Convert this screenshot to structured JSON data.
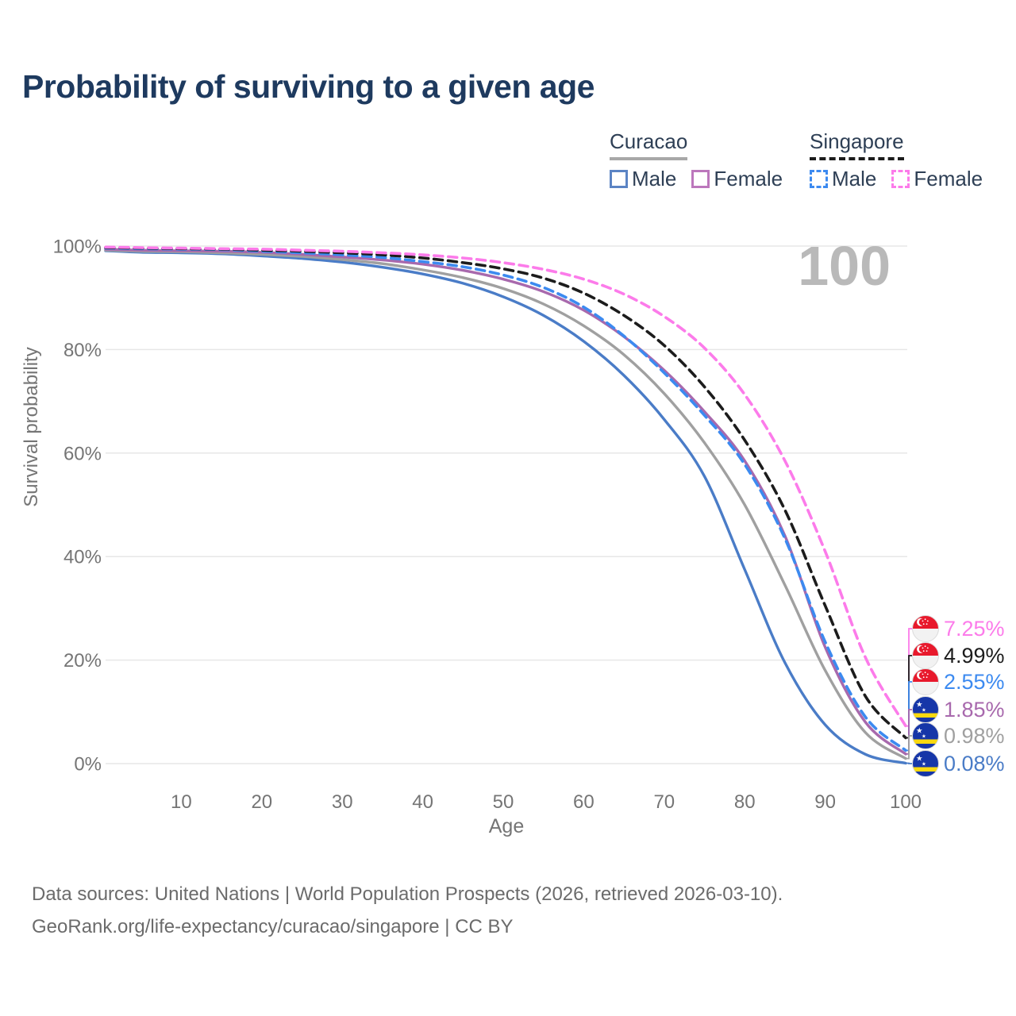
{
  "title": "Probability of surviving to a given age",
  "watermark": "100",
  "legend": {
    "curacao": {
      "label": "Curacao",
      "male": "Male",
      "female": "Female"
    },
    "singapore": {
      "label": "Singapore",
      "male": "Male",
      "female": "Female"
    }
  },
  "chart_data": {
    "type": "line",
    "title": "Probability of surviving to a given age",
    "xlabel": "Age",
    "ylabel": "Survival probability",
    "xlim": [
      0,
      100
    ],
    "ylim": [
      0,
      100
    ],
    "grid": "horizontal-only",
    "legend_position": "top-right",
    "x_ticks": [
      10,
      20,
      30,
      40,
      50,
      60,
      70,
      80,
      90,
      100
    ],
    "y_tick_labels": [
      "100%",
      "80%",
      "60%",
      "40%",
      "20%",
      "0%"
    ],
    "ages": [
      0,
      5,
      10,
      15,
      20,
      25,
      30,
      35,
      40,
      45,
      50,
      55,
      60,
      65,
      70,
      75,
      80,
      85,
      90,
      95,
      100
    ],
    "series": [
      {
        "name": "Singapore Female",
        "country": "Singapore",
        "sex": "Female",
        "line_style": "dashed",
        "color": "#fc7bea",
        "flag": "singapore",
        "end_label": "7.25%",
        "values": [
          99.8,
          99.7,
          99.6,
          99.5,
          99.4,
          99.2,
          99.0,
          98.7,
          98.3,
          97.7,
          96.8,
          95.5,
          93.6,
          90.7,
          86.4,
          80.3,
          71.3,
          58.5,
          41.0,
          20.5,
          7.25
        ]
      },
      {
        "name": "Singapore (both sexes)",
        "country": "Singapore",
        "sex": "Both",
        "line_style": "dashed",
        "color": "#1c1c1c",
        "flag": "singapore",
        "end_label": "4.99%",
        "values": [
          99.7,
          99.6,
          99.5,
          99.4,
          99.2,
          99.0,
          98.7,
          98.3,
          97.7,
          96.8,
          95.6,
          93.8,
          90.9,
          86.6,
          80.8,
          72.8,
          62.5,
          49.0,
          30.5,
          13.0,
          4.99
        ]
      },
      {
        "name": "Singapore Male",
        "country": "Singapore",
        "sex": "Male",
        "line_style": "dashed",
        "color": "#3c8af0",
        "flag": "singapore",
        "end_label": "2.55%",
        "values": [
          99.6,
          99.5,
          99.4,
          99.3,
          99.0,
          98.7,
          98.3,
          97.8,
          97.0,
          96.0,
          94.4,
          92.0,
          88.2,
          82.6,
          75.5,
          67.3,
          57.8,
          43.5,
          23.5,
          9.0,
          2.55
        ]
      },
      {
        "name": "Curacao Female",
        "country": "Curacao",
        "sex": "Female",
        "line_style": "solid",
        "color": "#a869ad",
        "flag": "curacao",
        "end_label": "1.85%",
        "values": [
          99.4,
          99.2,
          99.1,
          99.0,
          98.8,
          98.4,
          97.9,
          97.3,
          96.5,
          95.3,
          93.6,
          91.2,
          87.6,
          82.5,
          76.0,
          68.0,
          58.5,
          44.0,
          22.5,
          8.0,
          1.85
        ]
      },
      {
        "name": "Curacao (both sexes)",
        "country": "Curacao",
        "sex": "Both",
        "line_style": "solid",
        "color": "#a0a0a0",
        "flag": "curacao",
        "end_label": "0.98%",
        "values": [
          99.2,
          99.0,
          98.9,
          98.7,
          98.4,
          98.0,
          97.4,
          96.6,
          95.4,
          93.9,
          91.8,
          88.8,
          84.6,
          79.0,
          71.5,
          62.0,
          50.0,
          34.5,
          18.0,
          6.0,
          0.98
        ]
      },
      {
        "name": "Curacao Male",
        "country": "Curacao",
        "sex": "Male",
        "line_style": "solid",
        "color": "#4a7cc7",
        "flag": "curacao",
        "end_label": "0.08%",
        "values": [
          99.1,
          98.8,
          98.7,
          98.5,
          98.1,
          97.6,
          96.9,
          95.9,
          94.6,
          92.8,
          90.2,
          86.6,
          81.6,
          75.0,
          66.5,
          55.5,
          37.5,
          19.5,
          7.5,
          1.8,
          0.08
        ]
      }
    ]
  },
  "footer": {
    "line1": "Data sources: United Nations | World Population Prospects (2026, retrieved 2026-03-10).",
    "line2": "GeoRank.org/life-expectancy/curacao/singapore | CC BY"
  }
}
